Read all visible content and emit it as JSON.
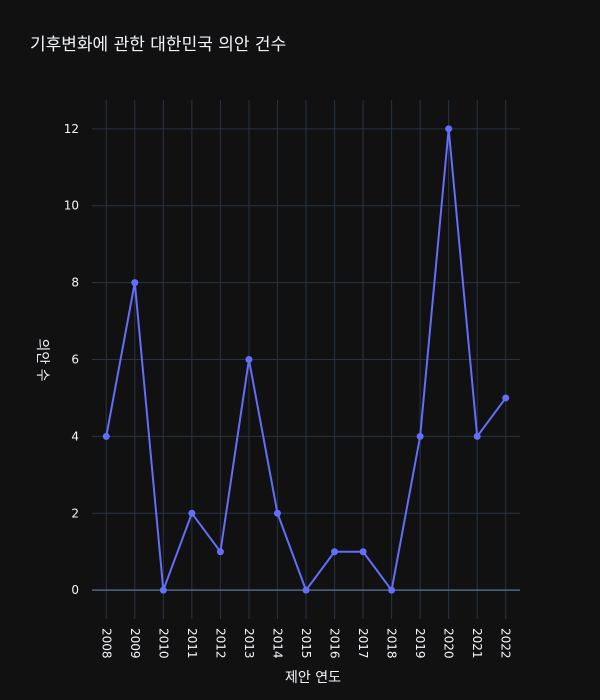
{
  "chart_data": {
    "type": "line",
    "title": "기후변화에 관한 대한민국 의안 건수",
    "xlabel": "제안 연도",
    "ylabel": "의안 수",
    "categories": [
      "2008",
      "2009",
      "2010",
      "2011",
      "2012",
      "2013",
      "2014",
      "2015",
      "2016",
      "2017",
      "2018",
      "2019",
      "2020",
      "2021",
      "2022"
    ],
    "series": [
      {
        "values": [
          4,
          8,
          0,
          2,
          1,
          6,
          2,
          0,
          1,
          1,
          0,
          4,
          12,
          4,
          5
        ]
      }
    ],
    "ylim": [
      -0.75,
      12.75
    ],
    "yticks": [
      0,
      2,
      4,
      6,
      8,
      10,
      12
    ],
    "grid": true,
    "line_color": "#636efa",
    "background_color": "#111111"
  }
}
